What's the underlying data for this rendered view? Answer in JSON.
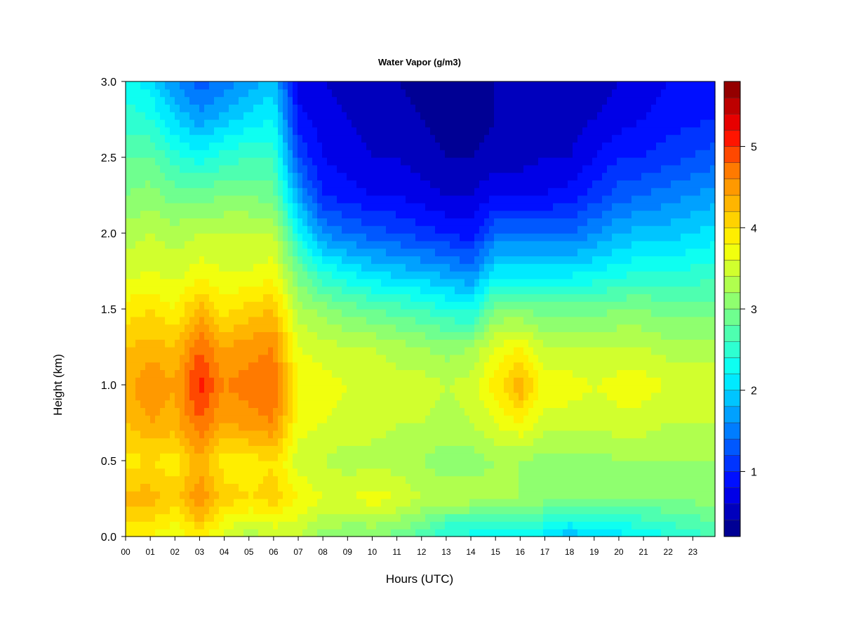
{
  "chart_data": {
    "type": "heatmap",
    "title": "Water Vapor (g/m3)",
    "xlabel": "Hours (UTC)",
    "ylabel": "Height (km)",
    "xlim": [
      0,
      23.9
    ],
    "ylim": [
      0,
      3.0
    ],
    "x_ticks": [
      "00",
      "01",
      "02",
      "03",
      "04",
      "05",
      "06",
      "07",
      "08",
      "09",
      "10",
      "11",
      "12",
      "13",
      "14",
      "15",
      "16",
      "17",
      "18",
      "19",
      "20",
      "21",
      "22",
      "23"
    ],
    "y_ticks": [
      "0.0",
      "0.5",
      "1.0",
      "1.5",
      "2.0",
      "2.5",
      "3.0"
    ],
    "heights": [
      0.0,
      0.25,
      0.5,
      0.75,
      1.0,
      1.25,
      1.5,
      1.75,
      2.0,
      2.25,
      2.5,
      2.75,
      3.0
    ],
    "profiles": [
      {
        "hour": 0,
        "values": [
          3.8,
          4.3,
          3.9,
          4.2,
          4.3,
          4.2,
          3.9,
          3.5,
          3.3,
          3.0,
          2.8,
          2.5,
          2.3
        ]
      },
      {
        "hour": 1,
        "values": [
          3.8,
          4.3,
          4.0,
          4.4,
          4.6,
          4.3,
          4.0,
          3.6,
          3.4,
          3.1,
          2.8,
          2.4,
          2.1
        ]
      },
      {
        "hour": 2,
        "values": [
          3.6,
          4.1,
          3.9,
          4.3,
          4.4,
          4.2,
          3.8,
          3.5,
          3.3,
          2.9,
          2.5,
          2.0,
          1.6
        ]
      },
      {
        "hour": 3,
        "values": [
          3.9,
          4.6,
          4.3,
          4.8,
          5.1,
          4.8,
          4.3,
          3.7,
          3.4,
          2.9,
          2.3,
          1.7,
          1.3
        ]
      },
      {
        "hour": 4,
        "values": [
          3.5,
          4.1,
          3.9,
          4.4,
          4.6,
          4.4,
          3.9,
          3.6,
          3.4,
          3.0,
          2.5,
          1.9,
          1.5
        ]
      },
      {
        "hour": 5,
        "values": [
          3.3,
          4.0,
          3.9,
          4.5,
          4.7,
          4.5,
          4.1,
          3.6,
          3.4,
          3.0,
          2.6,
          2.1,
          1.7
        ]
      },
      {
        "hour": 6,
        "values": [
          3.4,
          4.1,
          4.0,
          4.6,
          4.8,
          4.6,
          4.2,
          3.7,
          3.4,
          2.9,
          2.6,
          2.2,
          1.9
        ]
      },
      {
        "hour": 7,
        "values": [
          3.4,
          3.8,
          3.5,
          3.7,
          3.8,
          3.6,
          3.3,
          2.9,
          2.3,
          1.7,
          1.2,
          0.9,
          0.7
        ]
      },
      {
        "hour": 8,
        "values": [
          3.1,
          3.6,
          3.4,
          3.6,
          3.7,
          3.5,
          3.1,
          2.4,
          1.6,
          1.0,
          0.8,
          0.7,
          0.6
        ]
      },
      {
        "hour": 9,
        "values": [
          3.0,
          3.6,
          3.3,
          3.5,
          3.6,
          3.4,
          2.9,
          2.2,
          1.4,
          0.9,
          0.7,
          0.6,
          0.5
        ]
      },
      {
        "hour": 10,
        "values": [
          3.0,
          3.7,
          3.3,
          3.5,
          3.6,
          3.4,
          2.8,
          2.0,
          1.3,
          0.8,
          0.6,
          0.5,
          0.5
        ]
      },
      {
        "hour": 11,
        "values": [
          2.9,
          3.6,
          3.3,
          3.4,
          3.5,
          3.3,
          2.7,
          1.9,
          1.2,
          0.8,
          0.6,
          0.5,
          0.4
        ]
      },
      {
        "hour": 12,
        "values": [
          2.7,
          3.4,
          3.2,
          3.4,
          3.5,
          3.2,
          2.6,
          1.8,
          1.1,
          0.7,
          0.5,
          0.4,
          0.3
        ]
      },
      {
        "hour": 13,
        "values": [
          2.3,
          3.3,
          3.1,
          3.3,
          3.4,
          3.1,
          2.4,
          1.7,
          1.0,
          0.6,
          0.4,
          0.3,
          0.3
        ]
      },
      {
        "hour": 14,
        "values": [
          2.3,
          3.3,
          3.1,
          3.4,
          3.5,
          3.2,
          2.3,
          1.5,
          0.9,
          0.6,
          0.4,
          0.3,
          0.3
        ]
      },
      {
        "hour": 15,
        "values": [
          2.2,
          3.3,
          3.2,
          3.6,
          3.9,
          3.6,
          3.0,
          2.1,
          1.4,
          0.8,
          0.5,
          0.4,
          0.4
        ]
      },
      {
        "hour": 16,
        "values": [
          2.1,
          3.2,
          3.2,
          3.8,
          4.4,
          3.8,
          3.0,
          2.1,
          1.4,
          0.8,
          0.5,
          0.4,
          0.4
        ]
      },
      {
        "hour": 17,
        "values": [
          2.1,
          3.1,
          3.1,
          3.5,
          3.7,
          3.4,
          2.9,
          2.1,
          1.4,
          0.8,
          0.6,
          0.5,
          0.4
        ]
      },
      {
        "hour": 18,
        "values": [
          1.8,
          3.0,
          3.1,
          3.5,
          3.7,
          3.4,
          2.9,
          2.1,
          1.4,
          0.9,
          0.6,
          0.5,
          0.5
        ]
      },
      {
        "hour": 19,
        "values": [
          2.1,
          3.0,
          3.1,
          3.5,
          3.6,
          3.4,
          2.9,
          2.2,
          1.6,
          1.1,
          0.8,
          0.6,
          0.5
        ]
      },
      {
        "hour": 20,
        "values": [
          2.1,
          3.0,
          3.2,
          3.5,
          3.7,
          3.4,
          3.0,
          2.3,
          1.8,
          1.3,
          1.0,
          0.7,
          0.6
        ]
      },
      {
        "hour": 21,
        "values": [
          2.2,
          3.0,
          3.2,
          3.5,
          3.7,
          3.4,
          3.0,
          2.4,
          1.9,
          1.4,
          1.0,
          0.8,
          0.7
        ]
      },
      {
        "hour": 22,
        "values": [
          2.4,
          3.0,
          3.2,
          3.4,
          3.6,
          3.3,
          2.9,
          2.4,
          1.9,
          1.5,
          1.1,
          0.9,
          0.8
        ]
      },
      {
        "hour": 23.9,
        "values": [
          2.6,
          3.1,
          3.2,
          3.4,
          3.5,
          3.3,
          2.9,
          2.5,
          2.1,
          1.7,
          1.3,
          1.0,
          0.9
        ]
      }
    ],
    "colorbar": {
      "min": 0.2,
      "max": 5.8,
      "levels": 28,
      "ticks": [
        "1",
        "2",
        "3",
        "4",
        "5"
      ]
    },
    "colors": [
      "#00007f",
      "#0000ff",
      "#00ffff",
      "#7fff7f",
      "#ffff00",
      "#ff7f00",
      "#ff0000",
      "#7f0000"
    ]
  }
}
